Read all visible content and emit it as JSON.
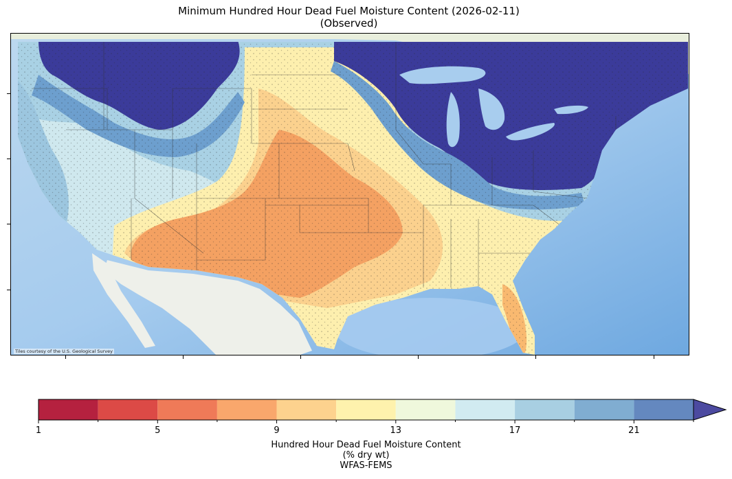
{
  "title_line1": "Minimum Hundred Hour Dead Fuel Moisture Content (2026-02-11)",
  "title_line2": "(Observed)",
  "attribution": "Tiles courtesy of the U.S. Geological Survey",
  "colorbar": {
    "label_line1": "Hundred Hour Dead Fuel Moisture Content",
    "label_line2": "(% dry wt)",
    "label_line3": "WFAS-FEMS",
    "tick_labels": [
      "1",
      "5",
      "9",
      "13",
      "17",
      "21"
    ],
    "bin_edges": [
      1,
      3,
      5,
      7,
      9,
      11,
      13,
      15,
      17,
      19,
      21,
      23
    ],
    "colors": [
      "#b5213f",
      "#dc4a46",
      "#ef7a58",
      "#f9a76c",
      "#fdd28e",
      "#fef2ad",
      "#eff8dc",
      "#d1ebf1",
      "#a8cfe2",
      "#80add1",
      "#6488bf",
      "#4c4aa0"
    ],
    "extend": "max"
  },
  "colors": {
    "ocean": "#8dbde6",
    "land_background": "#eef1e6",
    "very_wet": "#3b3b9a",
    "wet": "#6d9fce",
    "moist": "#a9d1e4",
    "mid": "#fdefae",
    "dry": "#fbd18e",
    "very_dry": "#f4a162"
  }
}
